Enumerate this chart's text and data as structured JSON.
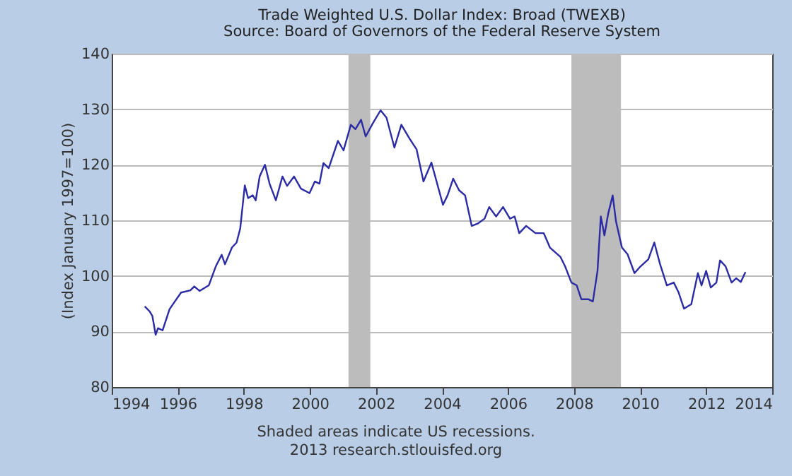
{
  "chart_data": {
    "type": "line",
    "title": "Trade Weighted U.S. Dollar Index: Broad (TWEXB)",
    "subtitle": "Source: Board of Governors of the Federal Reserve System",
    "ylabel": "(Index January 1997=100)",
    "annotations": [
      "Shaded areas indicate US recessions.",
      "2013 research.stlouisfed.org"
    ],
    "series": [
      {
        "color": "#2b2ba6",
        "x": [
          1995.0,
          1995.15,
          1995.23,
          1995.33,
          1995.4,
          1995.54,
          1995.75,
          1995.9,
          1996.1,
          1996.38,
          1996.5,
          1996.66,
          1996.94,
          1997.15,
          1997.33,
          1997.43,
          1997.64,
          1997.78,
          1997.89,
          1998.03,
          1998.13,
          1998.27,
          1998.36,
          1998.48,
          1998.64,
          1998.78,
          1998.97,
          1999.17,
          1999.31,
          1999.52,
          1999.73,
          1999.99,
          2000.15,
          2000.29,
          2000.41,
          2000.57,
          2000.85,
          2001.02,
          2001.24,
          2001.38,
          2001.55,
          2001.69,
          2001.9,
          2002.14,
          2002.32,
          2002.56,
          2002.77,
          2003.02,
          2003.23,
          2003.44,
          2003.68,
          2004.03,
          2004.17,
          2004.34,
          2004.52,
          2004.7,
          2004.9,
          2005.08,
          2005.29,
          2005.43,
          2005.64,
          2005.85,
          2006.06,
          2006.2,
          2006.34,
          2006.55,
          2006.83,
          2007.08,
          2007.27,
          2007.59,
          2007.73,
          2007.92,
          2008.08,
          2008.22,
          2008.43,
          2008.57,
          2008.71,
          2008.81,
          2008.92,
          2009.03,
          2009.17,
          2009.27,
          2009.45,
          2009.62,
          2009.83,
          2010.01,
          2010.25,
          2010.43,
          2010.6,
          2010.81,
          2011.02,
          2011.16,
          2011.33,
          2011.55,
          2011.75,
          2011.86,
          2012.0,
          2012.14,
          2012.31,
          2012.42,
          2012.59,
          2012.77,
          2012.91,
          2013.05,
          2013.19
        ],
        "values": [
          94.5,
          93.6,
          92.8,
          89.4,
          90.6,
          90.2,
          94.0,
          95.3,
          97.0,
          97.4,
          98.1,
          97.3,
          98.3,
          101.7,
          103.8,
          102.1,
          105.1,
          106.0,
          108.5,
          116.3,
          114.0,
          114.5,
          113.6,
          117.9,
          120.0,
          116.6,
          113.6,
          117.9,
          116.2,
          117.9,
          115.7,
          114.9,
          117.0,
          116.6,
          120.3,
          119.4,
          124.3,
          122.6,
          127.2,
          126.4,
          128.1,
          125.1,
          127.4,
          129.8,
          128.5,
          123.1,
          127.2,
          124.7,
          122.8,
          117.0,
          120.4,
          112.8,
          114.5,
          117.5,
          115.4,
          114.5,
          109.0,
          109.4,
          110.3,
          112.4,
          110.7,
          112.4,
          110.3,
          110.7,
          107.7,
          109.0,
          107.7,
          107.7,
          105.1,
          103.4,
          101.7,
          98.8,
          98.3,
          95.8,
          95.8,
          95.4,
          100.9,
          110.7,
          107.3,
          111.1,
          114.5,
          109.8,
          105.1,
          103.9,
          100.5,
          101.7,
          103.0,
          106.0,
          102.2,
          98.3,
          98.8,
          97.1,
          94.1,
          94.9,
          100.5,
          98.3,
          100.9,
          97.9,
          98.8,
          102.8,
          101.7,
          98.8,
          99.6,
          98.9,
          100.7
        ]
      }
    ],
    "xlim": [
      1994,
      2014
    ],
    "xticks": [
      1994,
      1996,
      1998,
      2000,
      2002,
      2004,
      2006,
      2008,
      2010,
      2012,
      2014
    ],
    "ylim": [
      80,
      140
    ],
    "yticks": [
      80,
      90,
      100,
      110,
      120,
      130,
      140
    ],
    "bands": [
      {
        "axis": "x",
        "from": 2001.17,
        "to": 2001.83,
        "color": "#bcbcbc"
      },
      {
        "axis": "x",
        "from": 2007.92,
        "to": 2009.42,
        "color": "#bcbcbc"
      }
    ],
    "grid": "y"
  }
}
